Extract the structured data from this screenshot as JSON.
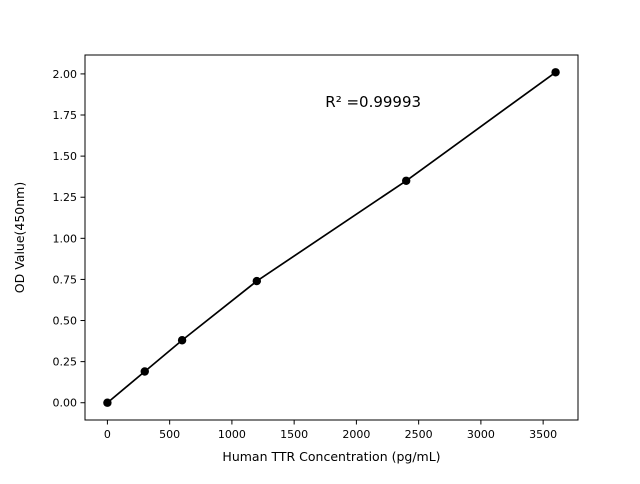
{
  "chart_data": {
    "type": "scatter",
    "title": "",
    "xlabel": "Human TTR Concentration (pg/mL)",
    "ylabel": "OD Value(450nm)",
    "annotation": "R² =0.99993",
    "annotation_x": 1750,
    "annotation_y": 1.8,
    "x": [
      0,
      300,
      600,
      1200,
      2400,
      3600
    ],
    "y": [
      0.0,
      0.19,
      0.38,
      0.74,
      1.35,
      2.01
    ],
    "xticks": [
      0,
      500,
      1000,
      1500,
      2000,
      2500,
      3000,
      3500
    ],
    "yticks": [
      0.0,
      0.25,
      0.5,
      0.75,
      1.0,
      1.25,
      1.5,
      1.75,
      2.0
    ],
    "xlim": [
      -180,
      3780
    ],
    "ylim": [
      -0.105,
      2.115
    ],
    "line_color": "#000000",
    "marker_color": "#000000",
    "frame_color": "#000000",
    "grid": false,
    "legend_position": "none"
  }
}
